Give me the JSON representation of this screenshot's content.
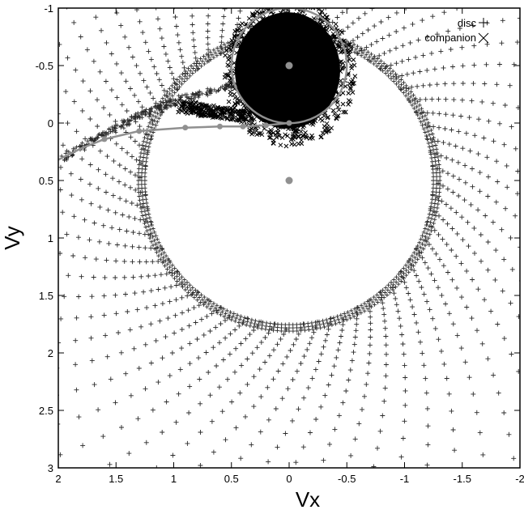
{
  "chart_data": {
    "type": "scatter",
    "title": "",
    "xlabel": "Vx",
    "ylabel": "Vy",
    "xlim": [
      2,
      -2
    ],
    "ylim": [
      -1,
      3
    ],
    "x_reversed": true,
    "y_inverted": true,
    "grid": false,
    "legend_position": "top-right",
    "x_ticks": [
      "2",
      "1.5",
      "1",
      "0.5",
      "0",
      "-0.5",
      "-1",
      "-1.5",
      "-2"
    ],
    "y_ticks": [
      "-1",
      "-0.5",
      "0",
      "0.5",
      "1",
      "1.5",
      "2",
      "2.5",
      "3"
    ],
    "legend": [
      {
        "label": "disc",
        "marker": "+"
      },
      {
        "label": "companion",
        "marker": "x"
      }
    ],
    "disc_pattern": {
      "center": [
        0,
        0.5
      ],
      "inner_radius": 1.25,
      "arms": 64
    },
    "companion_blob": {
      "center": [
        0,
        -0.5
      ],
      "radius": 0.48
    },
    "roche_lobe_center": [
      0,
      -0.5
    ],
    "roche_lobe_radius": 0.5,
    "primary_point": [
      0,
      0.5
    ],
    "secondary_point": [
      0,
      -0.5
    ],
    "stream_path": [
      [
        2.0,
        0.32
      ],
      [
        1.8,
        0.22
      ],
      [
        1.6,
        0.14
      ],
      [
        1.3,
        0.07
      ],
      [
        0.9,
        0.04
      ],
      [
        0.6,
        0.03
      ],
      [
        0.4,
        0.03
      ],
      [
        0.2,
        0.02
      ],
      [
        0.0,
        0.0
      ]
    ],
    "stream_points": [
      [
        1.6,
        0.14
      ],
      [
        1.3,
        0.07
      ],
      [
        0.9,
        0.04
      ],
      [
        0.6,
        0.03
      ],
      [
        0.4,
        0.03
      ],
      [
        0.2,
        0.02
      ],
      [
        0.0,
        0.0
      ]
    ],
    "colors": {
      "disc": "#2a2a2a",
      "companion": "#000000",
      "trajectory": "#909090",
      "axes": "#000000"
    }
  }
}
